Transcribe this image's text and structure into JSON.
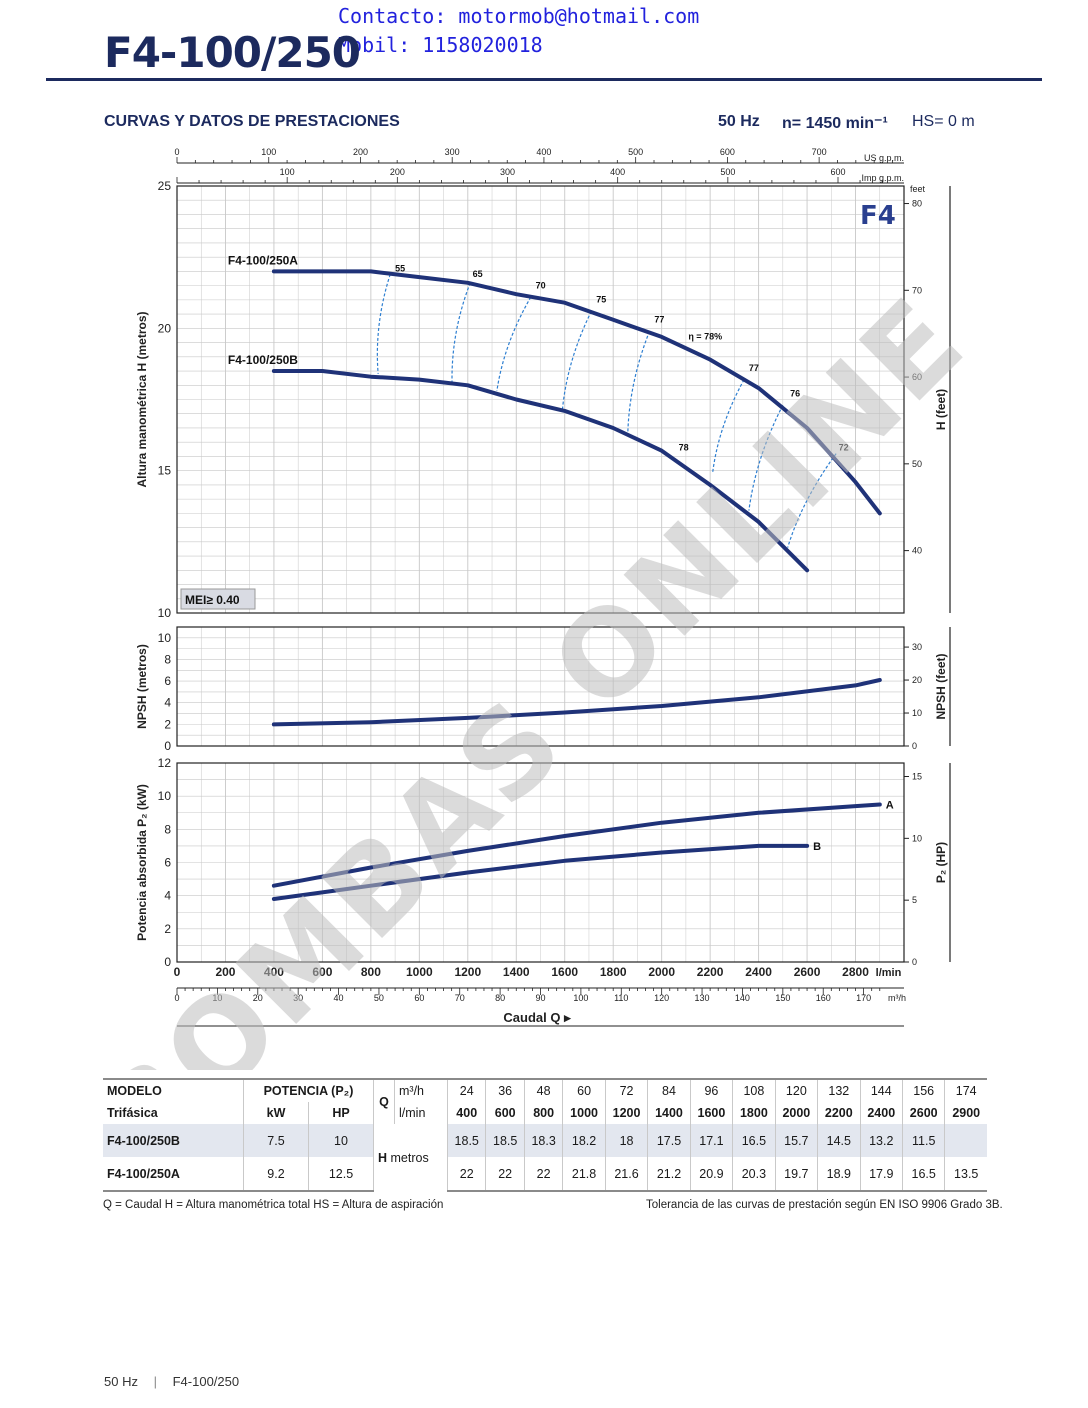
{
  "header": {
    "contact_line1": "Contacto: motormob@hotmail.com",
    "contact_line2": "Mobil: 1158020018",
    "title": "F4-100/250",
    "section_title": "CURVAS Y DATOS DE PRESTACIONES",
    "hz": "50 Hz",
    "speed": "n= 1450 min⁻¹",
    "hs": "HS= 0 m"
  },
  "chart_data": {
    "type": "line",
    "family_badge": "F4",
    "watermark": "BOMBAS ONLINE",
    "top_axes": {
      "us_gpm": {
        "label": "US g.p.m.",
        "ticks": [
          0,
          100,
          200,
          300,
          400,
          500,
          600,
          700
        ]
      },
      "imp_gpm": {
        "label": "Imp g.p.m.",
        "ticks": [
          100,
          200,
          300,
          400,
          500,
          600
        ]
      }
    },
    "x_axis": {
      "label": "Caudal Q",
      "unit": "l/min",
      "ticks": [
        0,
        200,
        400,
        600,
        800,
        1000,
        1200,
        1400,
        1600,
        1800,
        2000,
        2200,
        2400,
        2600,
        2800
      ],
      "range": [
        0,
        3000
      ]
    },
    "x_axis_m3h": {
      "unit": "m³/h",
      "ticks": [
        0,
        10,
        20,
        30,
        40,
        50,
        60,
        70,
        80,
        90,
        100,
        110,
        120,
        130,
        140,
        150,
        160,
        170
      ]
    },
    "head_panel": {
      "ylabel": "Altura manométrica H (metros)",
      "ylim": [
        10,
        25
      ],
      "yticks": [
        10,
        15,
        20,
        25
      ],
      "ylabel_right": "H (feet)",
      "right_unit": "feet",
      "right_ticks": [
        40,
        50,
        60,
        70,
        80
      ],
      "mei_label": "MEI≥ 0.40",
      "series": [
        {
          "name": "F4-100/250A",
          "x": [
            400,
            600,
            800,
            1000,
            1200,
            1400,
            1600,
            1800,
            2000,
            2200,
            2400,
            2600,
            2800,
            2900
          ],
          "y": [
            22,
            22,
            22,
            21.8,
            21.6,
            21.2,
            20.9,
            20.3,
            19.7,
            18.9,
            17.9,
            16.5,
            14.6,
            13.5
          ]
        },
        {
          "name": "F4-100/250B",
          "x": [
            400,
            600,
            800,
            1000,
            1200,
            1400,
            1600,
            1800,
            2000,
            2200,
            2400,
            2600
          ],
          "y": [
            18.5,
            18.5,
            18.3,
            18.2,
            18,
            17.5,
            17.1,
            16.5,
            15.7,
            14.5,
            13.2,
            11.5
          ]
        }
      ],
      "efficiency_lines": [
        {
          "label": "55",
          "a": [
            880,
            21.9
          ],
          "b": [
            830,
            18.4
          ]
        },
        {
          "label": "65",
          "a": [
            1210,
            21.6
          ],
          "b": [
            1135,
            18.1
          ]
        },
        {
          "label": "70",
          "a": [
            1460,
            21.1
          ],
          "b": [
            1320,
            17.8
          ]
        },
        {
          "label": "75",
          "a": [
            1710,
            20.6
          ],
          "b": [
            1590,
            17.1
          ]
        },
        {
          "label": "77",
          "a": [
            1950,
            19.9
          ],
          "b": [
            1860,
            16.2
          ]
        },
        {
          "label": "77",
          "a": [
            2340,
            18.2
          ],
          "b": [
            2210,
            14.9
          ]
        },
        {
          "label": "76",
          "a": [
            2500,
            17.3
          ],
          "b": [
            2360,
            13.6
          ]
        },
        {
          "label": "72",
          "a": [
            2720,
            15.6
          ],
          "b": [
            2520,
            12.3
          ]
        }
      ],
      "efficiency_labels": [
        {
          "text": "55",
          "x": 900,
          "y": 22.0
        },
        {
          "text": "65",
          "x": 1220,
          "y": 21.8
        },
        {
          "text": "70",
          "x": 1480,
          "y": 21.4
        },
        {
          "text": "75",
          "x": 1730,
          "y": 20.9
        },
        {
          "text": "77",
          "x": 1970,
          "y": 20.2
        },
        {
          "text": "η = 78%",
          "x": 2110,
          "y": 19.6
        },
        {
          "text": "78",
          "x": 2070,
          "y": 15.7
        },
        {
          "text": "77",
          "x": 2360,
          "y": 18.5
        },
        {
          "text": "76",
          "x": 2530,
          "y": 17.6
        },
        {
          "text": "72",
          "x": 2730,
          "y": 15.7
        }
      ]
    },
    "npsh_panel": {
      "ylabel": "NPSH (metros)",
      "ylim": [
        0,
        11
      ],
      "yticks": [
        0,
        2,
        4,
        6,
        8,
        10
      ],
      "ylabel_right": "NPSH (feet)",
      "right_ticks": [
        0,
        10,
        20,
        30
      ],
      "series": [
        {
          "x": [
            400,
            800,
            1200,
            1600,
            2000,
            2400,
            2800,
            2900
          ],
          "y": [
            2,
            2.2,
            2.6,
            3.1,
            3.7,
            4.5,
            5.6,
            6.1
          ]
        }
      ]
    },
    "power_panel": {
      "ylabel": "Potencia absorbida P₂ (kW)",
      "ylim": [
        0,
        12
      ],
      "yticks": [
        0,
        2,
        4,
        6,
        8,
        10,
        12
      ],
      "ylabel_right": "P₂ (HP)",
      "right_ticks": [
        0,
        5,
        10,
        15
      ],
      "series": [
        {
          "name": "A",
          "x": [
            400,
            800,
            1200,
            1600,
            2000,
            2400,
            2800,
            2900
          ],
          "y": [
            4.6,
            5.7,
            6.7,
            7.6,
            8.4,
            9.0,
            9.4,
            9.5
          ]
        },
        {
          "name": "B",
          "x": [
            400,
            800,
            1200,
            1600,
            2000,
            2400,
            2600
          ],
          "y": [
            3.8,
            4.6,
            5.4,
            6.1,
            6.6,
            7.0,
            7.0
          ]
        }
      ]
    }
  },
  "table": {
    "col_modelo": "MODELO",
    "col_trifasica": "Trifásica",
    "col_potencia": "POTENCIA (P₂)",
    "col_kw": "kW",
    "col_hp": "HP",
    "q_label": "Q",
    "m3h_unit": "m³/h",
    "lmin_unit": "l/min",
    "h_label": "H",
    "h_unit": "metros",
    "q_m3h": [
      "24",
      "36",
      "48",
      "60",
      "72",
      "84",
      "96",
      "108",
      "120",
      "132",
      "144",
      "156",
      "174"
    ],
    "q_lmin": [
      "400",
      "600",
      "800",
      "1000",
      "1200",
      "1400",
      "1600",
      "1800",
      "2000",
      "2200",
      "2400",
      "2600",
      "2900"
    ],
    "rows": [
      {
        "model": "F4-100/250B",
        "kw": "7.5",
        "hp": "10",
        "h": [
          "18.5",
          "18.5",
          "18.3",
          "18.2",
          "18",
          "17.5",
          "17.1",
          "16.5",
          "15.7",
          "14.5",
          "13.2",
          "11.5",
          ""
        ]
      },
      {
        "model": "F4-100/250A",
        "kw": "9.2",
        "hp": "12.5",
        "h": [
          "22",
          "22",
          "22",
          "21.8",
          "21.6",
          "21.2",
          "20.9",
          "20.3",
          "19.7",
          "18.9",
          "17.9",
          "16.5",
          "13.5"
        ]
      }
    ],
    "note_left": "Q = Caudal   H = Altura manométrica total   HS = Altura de aspiración",
    "note_right": "Tolerancia de las curvas de prestación según EN ISO 9906 Grado 3B."
  },
  "footer": {
    "hz": "50 Hz",
    "sep": "|",
    "model": "F4-100/250"
  },
  "colors": {
    "brand": "#1c2a5e",
    "curve": "#1f3278",
    "eff_line": "#2e7fd1",
    "grid": "#c8c8c8",
    "watermark": "#bdbdbd"
  }
}
